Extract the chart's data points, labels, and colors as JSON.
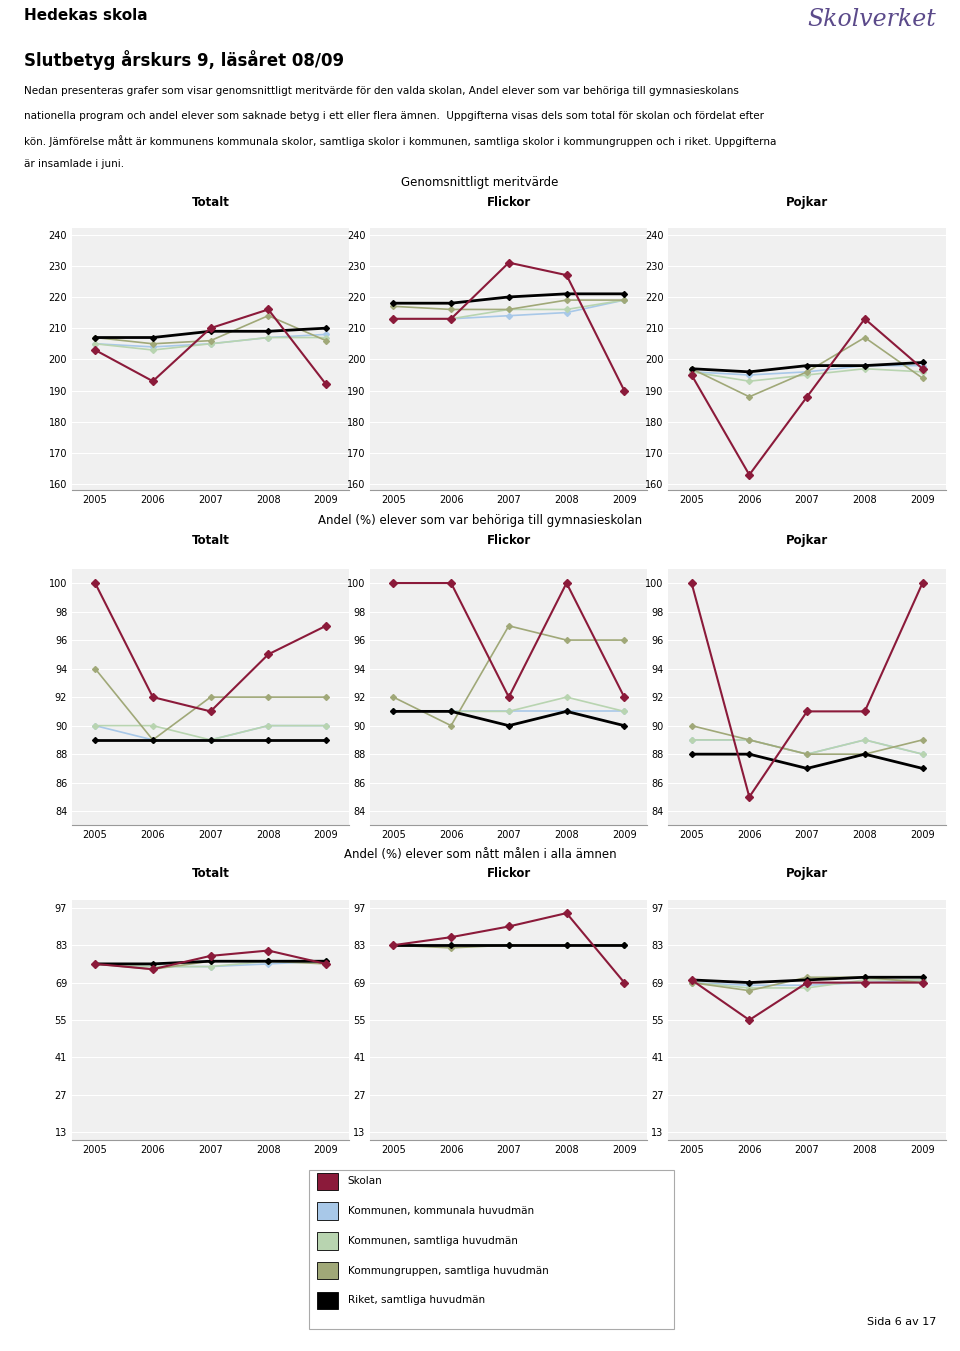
{
  "years": [
    2005,
    2006,
    2007,
    2008,
    2009
  ],
  "school_name": "Hedekas skola",
  "title_main": "Slutbetyg årskurs 9, läsåret 08/09",
  "intro_line1": "Nedan presenteras grafer som visar genomsnittligt meritvärde för den valda skolan, Andel elever som var behöriga till gymnasieskolans",
  "intro_line2": "nationella program och andel elever som saknade betyg i ett eller flera ämnen.  Uppgifterna visas dels som total för skolan och fördelat efter",
  "intro_line3": "kön. Jämförelse mått är kommunens kommunala skolor, samtliga skolor i kommunen, samtliga skolor i kommungruppen och i riket. Uppgifterna",
  "intro_line4": "är insamlade i juni.",
  "section1_title": "Genomsnittligt meritvärde",
  "section2_title": "Andel (%) elever som var behöriga till gymnasieskolan",
  "section3_title": "Andel (%) elever som nått målen i alla ämnen",
  "col_titles": [
    "Totalt",
    "Flickor",
    "Pojkar"
  ],
  "merit_totalt": {
    "skolan": [
      203,
      193,
      210,
      216,
      192
    ],
    "kom_komm": [
      205,
      204,
      205,
      207,
      208
    ],
    "kom_samt": [
      205,
      203,
      205,
      207,
      207
    ],
    "komgr": [
      207,
      205,
      206,
      214,
      206
    ],
    "riket": [
      207,
      207,
      209,
      209,
      210
    ]
  },
  "merit_flickor": {
    "skolan": [
      213,
      213,
      231,
      227,
      190
    ],
    "kom_komm": [
      213,
      213,
      214,
      215,
      219
    ],
    "kom_samt": [
      213,
      213,
      216,
      216,
      219
    ],
    "komgr": [
      217,
      216,
      216,
      219,
      219
    ],
    "riket": [
      218,
      218,
      220,
      221,
      221
    ]
  },
  "merit_pojkar": {
    "skolan": [
      195,
      163,
      188,
      213,
      197
    ],
    "kom_komm": [
      196,
      195,
      196,
      198,
      198
    ],
    "kom_samt": [
      196,
      193,
      195,
      197,
      196
    ],
    "komgr": [
      197,
      188,
      196,
      207,
      194
    ],
    "riket": [
      197,
      196,
      198,
      198,
      199
    ]
  },
  "gym_totalt": {
    "skolan": [
      100,
      92,
      91,
      95,
      97
    ],
    "kom_komm": [
      90,
      89,
      89,
      90,
      90
    ],
    "kom_samt": [
      90,
      90,
      89,
      90,
      90
    ],
    "komgr": [
      94,
      89,
      92,
      92,
      92
    ],
    "riket": [
      89,
      89,
      89,
      89,
      89
    ]
  },
  "gym_flickor": {
    "skolan": [
      100,
      100,
      92,
      100,
      92
    ],
    "kom_komm": [
      91,
      91,
      91,
      91,
      91
    ],
    "kom_samt": [
      91,
      91,
      91,
      92,
      91
    ],
    "komgr": [
      92,
      90,
      97,
      96,
      96
    ],
    "riket": [
      91,
      91,
      90,
      91,
      90
    ]
  },
  "gym_pojkar": {
    "skolan": [
      100,
      85,
      91,
      91,
      100
    ],
    "kom_komm": [
      89,
      89,
      88,
      89,
      88
    ],
    "kom_samt": [
      89,
      89,
      88,
      89,
      88
    ],
    "komgr": [
      90,
      89,
      88,
      88,
      89
    ],
    "riket": [
      88,
      88,
      87,
      88,
      87
    ]
  },
  "mal_totalt": {
    "skolan": [
      76,
      74,
      79,
      81,
      76
    ],
    "kom_komm": [
      76,
      75,
      75,
      76,
      77
    ],
    "kom_samt": [
      76,
      75,
      75,
      77,
      77
    ],
    "komgr": [
      76,
      74,
      77,
      77,
      76
    ],
    "riket": [
      76,
      76,
      77,
      77,
      77
    ]
  },
  "mal_flickor": {
    "skolan": [
      83,
      86,
      90,
      95,
      69
    ],
    "kom_komm": [
      83,
      83,
      83,
      83,
      83
    ],
    "kom_samt": [
      83,
      83,
      83,
      83,
      83
    ],
    "komgr": [
      83,
      82,
      83,
      83,
      83
    ],
    "riket": [
      83,
      83,
      83,
      83,
      83
    ]
  },
  "mal_pojkar": {
    "skolan": [
      70,
      55,
      69,
      69,
      69
    ],
    "kom_komm": [
      69,
      68,
      68,
      69,
      70
    ],
    "kom_samt": [
      69,
      67,
      67,
      70,
      70
    ],
    "komgr": [
      69,
      66,
      71,
      71,
      69
    ],
    "riket": [
      70,
      69,
      70,
      71,
      71
    ]
  },
  "colors": {
    "skolan": "#8B1A3A",
    "kom_komm": "#A8C8E8",
    "kom_samt": "#B8D4B0",
    "komgr": "#A0A878",
    "riket": "#000000"
  },
  "legend_items": [
    {
      "label": "Skolan",
      "color": "#8B1A3A"
    },
    {
      "label": "Kommunen, kommunala huvudmän",
      "color": "#A8C8E8"
    },
    {
      "label": "Kommunen, samtliga huvudmän",
      "color": "#B8D4B0"
    },
    {
      "label": "Kommungruppen, samtliga huvudmän",
      "color": "#A0A878"
    },
    {
      "label": "Riket, samtliga huvudmän",
      "color": "#000000"
    }
  ],
  "page_label": "Sida 6 av 17"
}
